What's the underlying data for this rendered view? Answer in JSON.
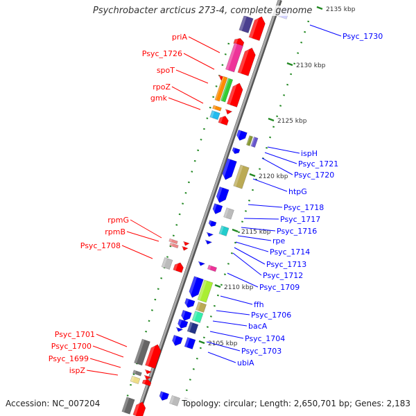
{
  "title": "Psychrobacter arcticus 273-4, complete genome",
  "footer": {
    "accession": "Accession: NC_007204",
    "summary": "Topology: circular; Length: 2,650,701 bp; Genes: 2,183"
  },
  "ticks": [
    "2135 kbp",
    "2130 kbp",
    "2125 kbp",
    "2120 kbp",
    "2115 kbp",
    "2110 kbp",
    "2105 kbp"
  ],
  "forward_labels": [
    "priA",
    "Psyc_1726",
    "spoT",
    "rpoZ",
    "gmk",
    "rpmG",
    "rpmB",
    "Psyc_1708",
    "Psyc_1701",
    "Psyc_1700",
    "Psyc_1699",
    "ispZ"
  ],
  "reverse_labels": [
    "Psyc_1730",
    "ispH",
    "Psyc_1721",
    "Psyc_1720",
    "htpG",
    "Psyc_1718",
    "Psyc_1717",
    "Psyc_1716",
    "rpe",
    "Psyc_1714",
    "Psyc_1713",
    "Psyc_1712",
    "Psyc_1709",
    "ffh",
    "Psyc_1706",
    "bacA",
    "Psyc_1704",
    "Psyc_1703",
    "ubiA"
  ],
  "colors": {
    "forward": "#ff0000",
    "reverse": "#0000ff",
    "backbone": "#888888",
    "ticks": "#228822"
  }
}
